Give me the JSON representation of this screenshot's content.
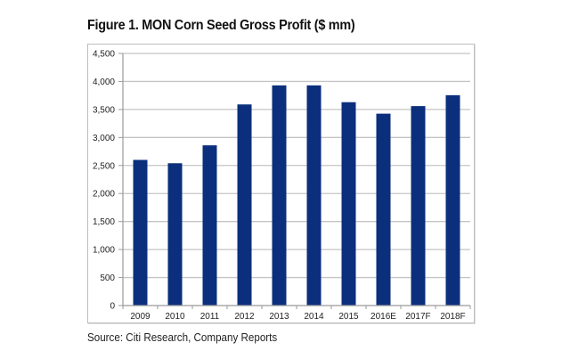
{
  "chart_data": {
    "type": "bar",
    "title": "Figure 1. MON Corn Seed Gross Profit ($ mm)",
    "categories": [
      "2009",
      "2010",
      "2011",
      "2012",
      "2013",
      "2014",
      "2015",
      "2016E",
      "2017F",
      "2018F"
    ],
    "values": [
      2600,
      2540,
      2860,
      3590,
      3930,
      3930,
      3630,
      3425,
      3560,
      3755
    ],
    "xlabel": "",
    "ylabel": "",
    "ylim": [
      0,
      4500
    ],
    "yticks": [
      0,
      500,
      1000,
      1500,
      2000,
      2500,
      3000,
      3500,
      4000,
      4500
    ],
    "ytick_labels": [
      "0",
      "500",
      "1,000",
      "1,500",
      "2,000",
      "2,500",
      "3,000",
      "3,500",
      "4,000",
      "4,500"
    ],
    "grid": true,
    "legend": "none",
    "bar_color": "#0b2f7c",
    "grid_color": "#c4c4c4",
    "source": "Source: Citi Research, Company Reports"
  }
}
